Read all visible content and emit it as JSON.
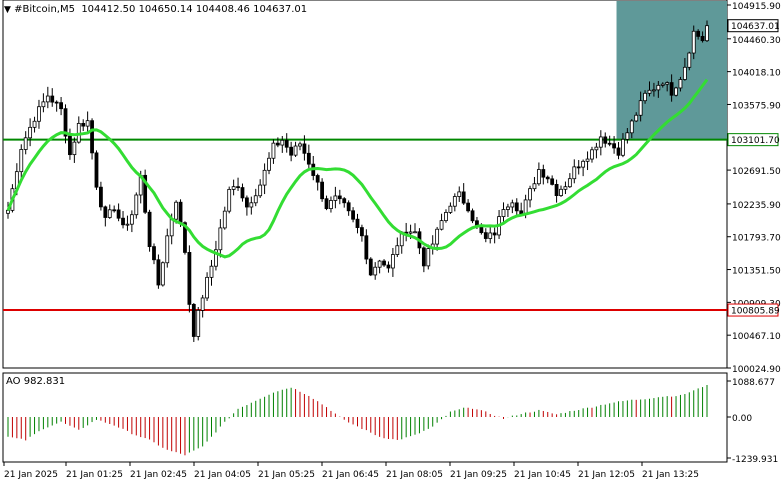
{
  "header": {
    "symbol_label": "#Bitcoin,M5",
    "ohlc_label": "104412.50 104650.14 104408.46 104637.01"
  },
  "indicator_label": "AO 982.831",
  "colors": {
    "candle": "#000000",
    "ma_line": "#33dd33",
    "support_line": "#008800",
    "red_line": "#dd0000",
    "highlight": "#5f9999",
    "ao_up": "#008000",
    "ao_down": "#c00000",
    "grid": "#000000"
  },
  "chart_data": [
    {
      "type": "candlestick",
      "title": "",
      "ylim": [
        100024.9,
        104915.9
      ],
      "y_ticks": [
        "104915.90",
        "104460.30",
        "104018.10",
        "103575.90",
        "102691.50",
        "102235.90",
        "101793.70",
        "101351.50",
        "100909.30",
        "100467.10",
        "100024.90"
      ],
      "x_ticks": [
        "21 Jan 2025",
        "21 Jan 01:25",
        "21 Jan 02:45",
        "21 Jan 04:05",
        "21 Jan 05:25",
        "21 Jan 06:45",
        "21 Jan 08:05",
        "21 Jan 09:25",
        "21 Jan 10:45",
        "21 Jan 12:05",
        "21 Jan 13:25"
      ],
      "close_anchors": [
        [
          0,
          102150
        ],
        [
          3,
          103000
        ],
        [
          6,
          103400
        ],
        [
          9,
          103700
        ],
        [
          12,
          103500
        ],
        [
          14,
          102900
        ],
        [
          16,
          103300
        ],
        [
          18,
          103350
        ],
        [
          20,
          102500
        ],
        [
          22,
          102000
        ],
        [
          24,
          102200
        ],
        [
          26,
          101900
        ],
        [
          28,
          102100
        ],
        [
          30,
          102600
        ],
        [
          32,
          101700
        ],
        [
          34,
          101150
        ],
        [
          36,
          101800
        ],
        [
          38,
          102300
        ],
        [
          40,
          101600
        ],
        [
          41,
          100900
        ],
        [
          42,
          100500
        ],
        [
          44,
          101000
        ],
        [
          46,
          101400
        ],
        [
          48,
          101900
        ],
        [
          50,
          102400
        ],
        [
          52,
          102500
        ],
        [
          54,
          102200
        ],
        [
          57,
          102500
        ],
        [
          60,
          103000
        ],
        [
          62,
          103100
        ],
        [
          64,
          102900
        ],
        [
          66,
          103050
        ],
        [
          68,
          102800
        ],
        [
          70,
          102500
        ],
        [
          72,
          102200
        ],
        [
          74,
          102300
        ],
        [
          76,
          102200
        ],
        [
          78,
          102000
        ],
        [
          80,
          101800
        ],
        [
          82,
          101300
        ],
        [
          84,
          101500
        ],
        [
          86,
          101350
        ],
        [
          88,
          101700
        ],
        [
          90,
          101900
        ],
        [
          92,
          101850
        ],
        [
          94,
          101450
        ],
        [
          96,
          101700
        ],
        [
          98,
          102000
        ],
        [
          100,
          102250
        ],
        [
          102,
          102350
        ],
        [
          104,
          102200
        ],
        [
          106,
          101900
        ],
        [
          108,
          101750
        ],
        [
          110,
          101850
        ],
        [
          112,
          102200
        ],
        [
          114,
          102300
        ],
        [
          116,
          102100
        ],
        [
          118,
          102400
        ],
        [
          120,
          102700
        ],
        [
          122,
          102600
        ],
        [
          124,
          102400
        ],
        [
          126,
          102500
        ],
        [
          128,
          102700
        ],
        [
          130,
          102850
        ],
        [
          132,
          102950
        ],
        [
          134,
          103150
        ],
        [
          136,
          103050
        ],
        [
          138,
          102950
        ],
        [
          140,
          103200
        ],
        [
          142,
          103450
        ],
        [
          144,
          103700
        ],
        [
          146,
          103800
        ],
        [
          148,
          103900
        ],
        [
          150,
          103750
        ],
        [
          152,
          103950
        ],
        [
          153,
          104100
        ],
        [
          155,
          104550
        ],
        [
          157,
          104450
        ],
        [
          158,
          104637
        ]
      ],
      "lines": [
        {
          "value": 103101.7,
          "label": "103101.70",
          "role": "support"
        },
        {
          "value": 100805.89,
          "label": "100805.89",
          "role": "red"
        }
      ],
      "current_price": "104637.01"
    },
    {
      "type": "bar",
      "title": "AO 982.831",
      "ylim": [
        -1239.931,
        1088.677
      ],
      "y_ticks": [
        "1088.677",
        "0.00",
        "-1239.931"
      ],
      "ao_anchors": [
        [
          0,
          -600
        ],
        [
          4,
          -700
        ],
        [
          8,
          -350
        ],
        [
          12,
          -150
        ],
        [
          16,
          -400
        ],
        [
          20,
          -80
        ],
        [
          24,
          -250
        ],
        [
          28,
          -500
        ],
        [
          32,
          -700
        ],
        [
          36,
          -1000
        ],
        [
          40,
          -1150
        ],
        [
          44,
          -900
        ],
        [
          48,
          -300
        ],
        [
          52,
          250
        ],
        [
          56,
          500
        ],
        [
          60,
          750
        ],
        [
          64,
          900
        ],
        [
          68,
          650
        ],
        [
          72,
          300
        ],
        [
          76,
          -100
        ],
        [
          80,
          -350
        ],
        [
          84,
          -600
        ],
        [
          88,
          -700
        ],
        [
          92,
          -550
        ],
        [
          96,
          -300
        ],
        [
          100,
          150
        ],
        [
          104,
          300
        ],
        [
          108,
          150
        ],
        [
          112,
          -50
        ],
        [
          116,
          100
        ],
        [
          120,
          200
        ],
        [
          124,
          80
        ],
        [
          128,
          200
        ],
        [
          132,
          300
        ],
        [
          136,
          420
        ],
        [
          140,
          500
        ],
        [
          144,
          550
        ],
        [
          148,
          620
        ],
        [
          152,
          650
        ],
        [
          156,
          850
        ],
        [
          158,
          982
        ]
      ]
    }
  ]
}
